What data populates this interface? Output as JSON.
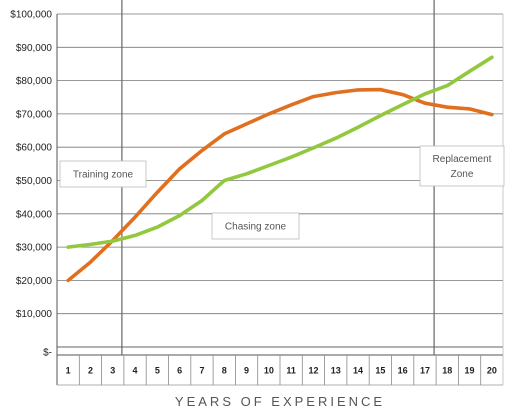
{
  "chart_data": {
    "type": "line",
    "x": [
      1,
      2,
      3,
      4,
      5,
      6,
      7,
      8,
      9,
      10,
      11,
      12,
      13,
      14,
      15,
      16,
      17,
      18,
      19,
      20
    ],
    "xlabel": "YEARS OF EXPERIENCE",
    "ylabel": "",
    "ylim": [
      0,
      100000
    ],
    "yticks": [
      "$-",
      "$10,000",
      "$20,000",
      "$30,000",
      "$40,000",
      "$50,000",
      "$60,000",
      "$70,000",
      "$80,000",
      "$90,000",
      "$100,000"
    ],
    "grid": true,
    "series": [
      {
        "color": "#e07020",
        "values": [
          20000,
          25500,
          32000,
          39000,
          46500,
          53500,
          59000,
          64000,
          67000,
          70000,
          72700,
          75200,
          76400,
          77200,
          77300,
          75800,
          73200,
          72000,
          71500,
          69800
        ]
      },
      {
        "color": "#92c83e",
        "values": [
          30000,
          30800,
          31800,
          33500,
          36000,
          39500,
          44000,
          50000,
          52000,
          54500,
          57000,
          59800,
          62700,
          66000,
          69500,
          72800,
          76000,
          78500,
          82800,
          87000
        ]
      }
    ],
    "vlines": [
      3,
      17
    ],
    "annotations": [
      {
        "id": "training",
        "lines": [
          "Training zone"
        ]
      },
      {
        "id": "chasing",
        "lines": [
          "Chasing zone"
        ]
      },
      {
        "id": "replacement",
        "lines": [
          "Replacement",
          "Zone"
        ]
      }
    ]
  }
}
